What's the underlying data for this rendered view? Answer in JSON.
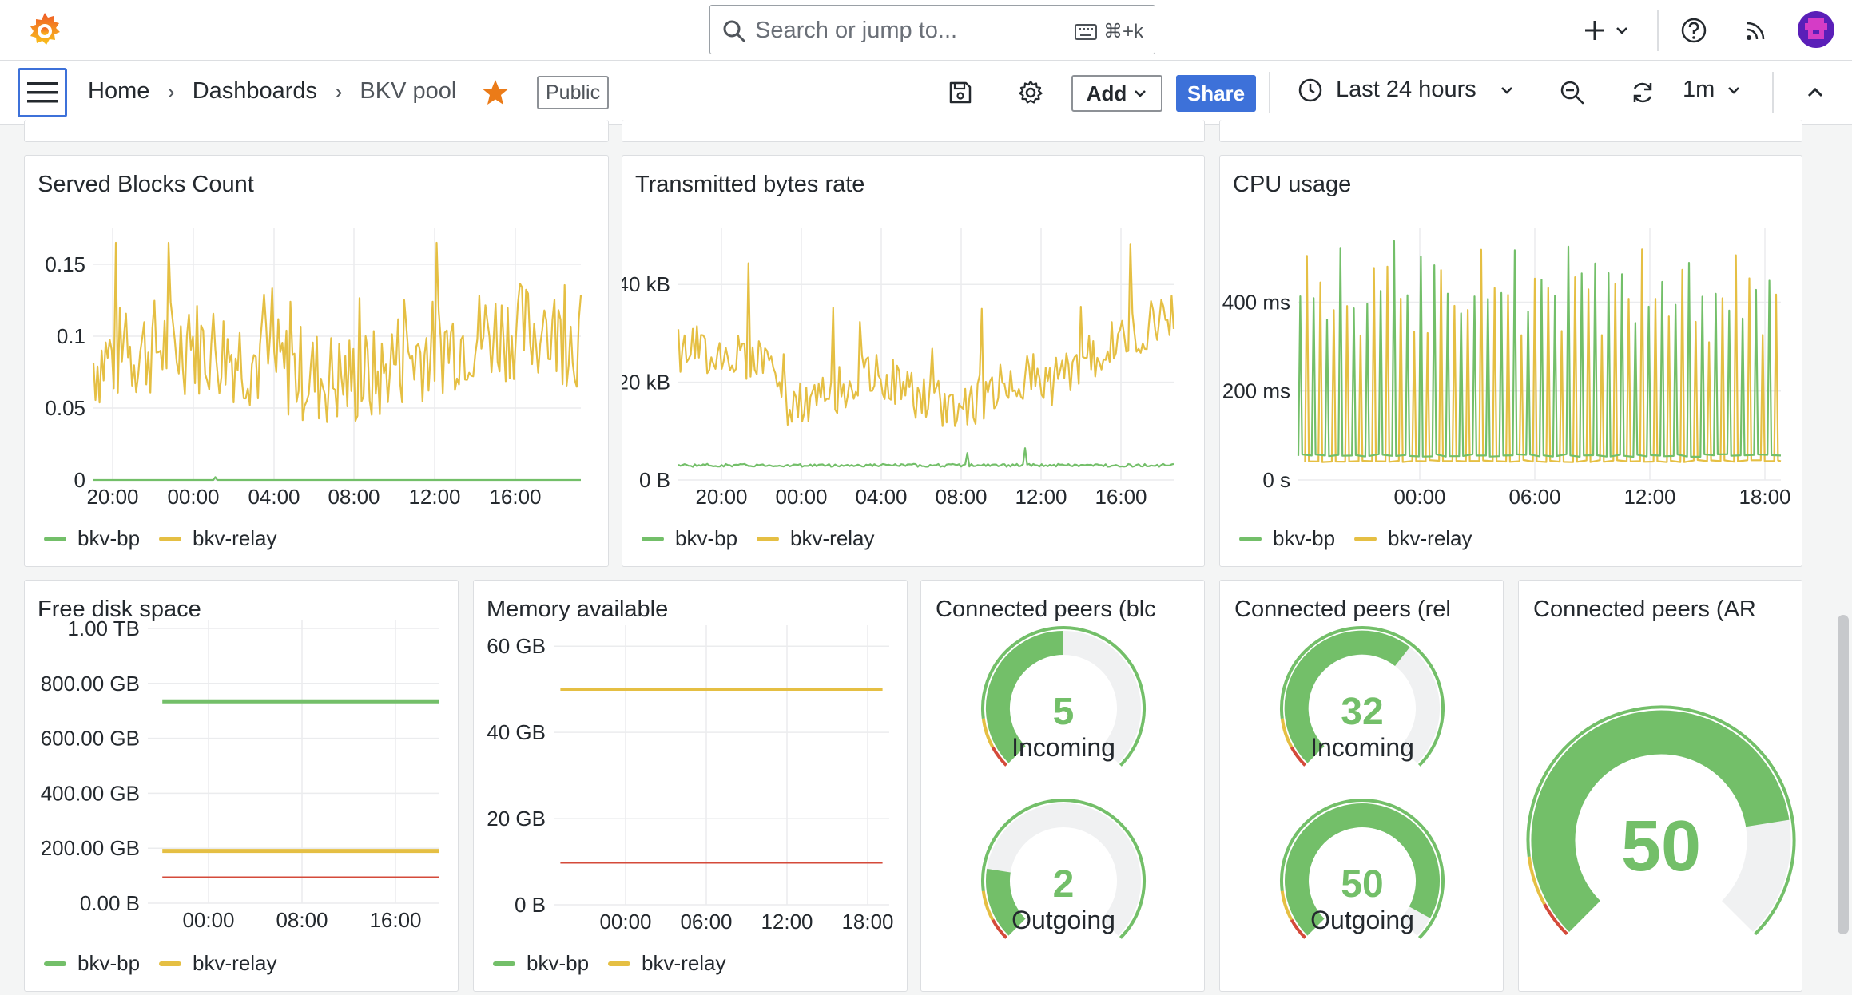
{
  "topbar": {
    "search_placeholder": "Search or jump to...",
    "search_shortcut": "⌘+k",
    "icons": [
      "grafana-logo-icon",
      "plus-icon",
      "chevron-down-icon",
      "help-icon",
      "rss-icon",
      "user-avatar-icon"
    ]
  },
  "navbar": {
    "breadcrumbs": [
      "Home",
      "Dashboards",
      "BKV pool"
    ],
    "public_badge": "Public",
    "add_label": "Add",
    "share_label": "Share",
    "time_range": "Last 24 hours",
    "refresh_interval": "1m"
  },
  "colors": {
    "bkv_bp": "#73bf69",
    "bkv_relay": "#e5bf43",
    "threshold_red": "#d44a3a",
    "accent_blue": "#3d71d9",
    "star_orange": "#eb7b18"
  },
  "panels": {
    "served_blocks": {
      "title": "Served Blocks Count",
      "y_ticks": [
        "0.15",
        "0.1",
        "0.05",
        "0"
      ],
      "x_ticks": [
        "20:00",
        "00:00",
        "04:00",
        "08:00",
        "12:00",
        "16:00"
      ],
      "legend": [
        "bkv-bp",
        "bkv-relay"
      ]
    },
    "tx_bytes": {
      "title": "Transmitted bytes rate",
      "y_ticks": [
        "40 kB",
        "20 kB",
        "0 B"
      ],
      "x_ticks": [
        "20:00",
        "00:00",
        "04:00",
        "08:00",
        "12:00",
        "16:00"
      ],
      "legend": [
        "bkv-bp",
        "bkv-relay"
      ]
    },
    "cpu": {
      "title": "CPU usage",
      "y_ticks": [
        "400 ms",
        "200 ms",
        "0 s"
      ],
      "x_ticks": [
        "00:00",
        "06:00",
        "12:00",
        "18:00"
      ],
      "legend": [
        "bkv-bp",
        "bkv-relay"
      ]
    },
    "disk": {
      "title": "Free disk space",
      "y_ticks": [
        "1.00 TB",
        "800.00 GB",
        "600.00 GB",
        "400.00 GB",
        "200.00 GB",
        "0.00 B"
      ],
      "x_ticks": [
        "00:00",
        "08:00",
        "16:00"
      ],
      "legend": [
        "bkv-bp",
        "bkv-relay"
      ]
    },
    "memory": {
      "title": "Memory available",
      "y_ticks": [
        "60 GB",
        "40 GB",
        "20 GB",
        "0 B"
      ],
      "x_ticks": [
        "00:00",
        "06:00",
        "12:00",
        "18:00"
      ],
      "legend": [
        "bkv-bp",
        "bkv-relay"
      ]
    },
    "peers_blc": {
      "title": "Connected peers (blc",
      "gauges": [
        {
          "value": "5",
          "label": "Incoming",
          "fraction": 0.5
        },
        {
          "value": "2",
          "label": "Outgoing",
          "fraction": 0.2
        }
      ]
    },
    "peers_rel": {
      "title": "Connected peers (rel",
      "gauges": [
        {
          "value": "32",
          "label": "Incoming",
          "fraction": 0.64
        },
        {
          "value": "50",
          "label": "Outgoing",
          "fraction": 0.94
        }
      ]
    },
    "peers_ar": {
      "title": "Connected peers (AR",
      "gauge": {
        "value": "50",
        "fraction": 0.8
      }
    }
  },
  "chart_data": [
    {
      "type": "line",
      "title": "Served Blocks Count",
      "x": [
        "20:00",
        "00:00",
        "04:00",
        "08:00",
        "12:00",
        "16:00"
      ],
      "ylim": [
        0,
        0.17
      ],
      "series": [
        {
          "name": "bkv-bp",
          "values": [
            0,
            0,
            0,
            0,
            0,
            0
          ]
        },
        {
          "name": "bkv-relay",
          "values": [
            0.08,
            0.08,
            0.08,
            0.08,
            0.09,
            0.09
          ]
        }
      ]
    },
    {
      "type": "line",
      "title": "Transmitted bytes rate",
      "x": [
        "20:00",
        "00:00",
        "04:00",
        "08:00",
        "12:00",
        "16:00"
      ],
      "ylim": [
        0,
        50
      ],
      "series": [
        {
          "name": "bkv-bp",
          "values": [
            3,
            3,
            3,
            3,
            3,
            3
          ]
        },
        {
          "name": "bkv-relay",
          "values": [
            28,
            22,
            18,
            17,
            18,
            30
          ]
        }
      ]
    },
    {
      "type": "line",
      "title": "CPU usage",
      "x": [
        "00:00",
        "06:00",
        "12:00",
        "18:00"
      ],
      "ylim": [
        0,
        550
      ],
      "series": [
        {
          "name": "bkv-bp",
          "values": [
            50,
            50,
            50,
            50
          ]
        },
        {
          "name": "bkv-relay",
          "values": [
            40,
            40,
            40,
            40
          ]
        }
      ]
    },
    {
      "type": "line",
      "title": "Free disk space",
      "x": [
        "00:00",
        "08:00",
        "16:00"
      ],
      "ylim": [
        0,
        1000
      ],
      "series": [
        {
          "name": "bkv-bp",
          "values": [
            735,
            735,
            735
          ]
        },
        {
          "name": "bkv-relay",
          "values": [
            190,
            190,
            190
          ]
        }
      ]
    },
    {
      "type": "line",
      "title": "Memory available",
      "x": [
        "00:00",
        "06:00",
        "12:00",
        "18:00"
      ],
      "ylim": [
        0,
        65
      ],
      "series": [
        {
          "name": "bkv-bp",
          "values": [
            10,
            10,
            10,
            10
          ]
        },
        {
          "name": "bkv-relay",
          "values": [
            50,
            50,
            50,
            50
          ]
        }
      ]
    }
  ]
}
